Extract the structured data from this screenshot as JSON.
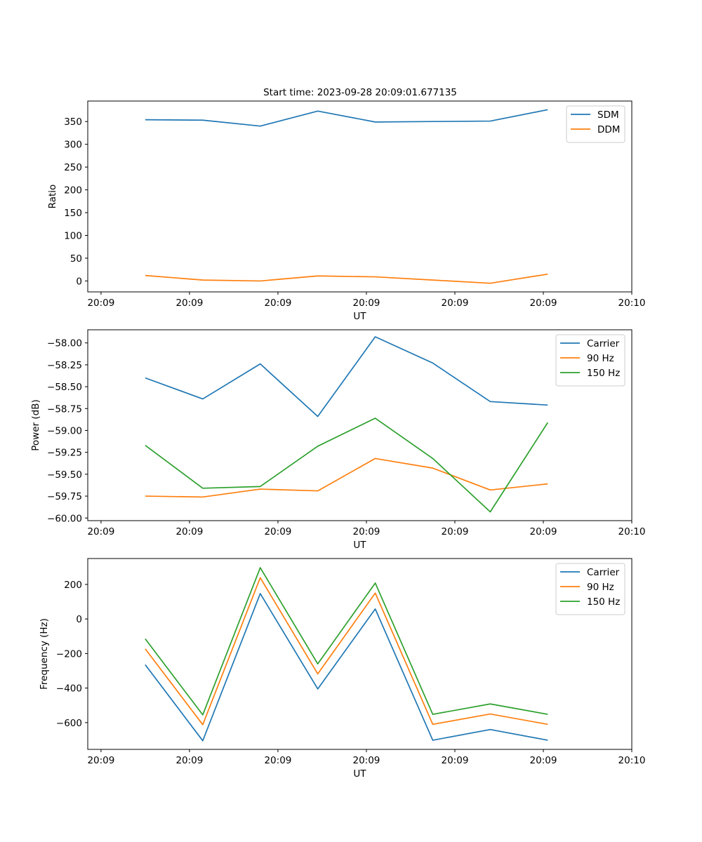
{
  "figure_title": "Start time: 2023-09-28 20:09:01.677135",
  "chart_data": [
    {
      "type": "line",
      "title": "Start time: 2023-09-28 20:09:01.677135",
      "xlabel": "UT",
      "ylabel": "Ratio",
      "x": [
        0.5,
        1.15,
        1.8,
        2.45,
        3.1,
        3.75,
        4.4,
        5.05
      ],
      "xlim": [
        -0.15,
        6.0
      ],
      "xticks": [
        0,
        1,
        2,
        3,
        4,
        5,
        6
      ],
      "xtick_labels": [
        "20:09",
        "20:09",
        "20:09",
        "20:09",
        "20:09",
        "20:09",
        "20:10"
      ],
      "ylim": [
        -24,
        395
      ],
      "yticks": [
        0,
        50,
        100,
        150,
        200,
        250,
        300,
        350
      ],
      "ytick_labels": [
        "0",
        "50",
        "100",
        "150",
        "200",
        "250",
        "300",
        "350"
      ],
      "legend_position": "top-right",
      "series": [
        {
          "name": "SDM",
          "color": "#1f77b4",
          "values": [
            354,
            353,
            340,
            373,
            349,
            350,
            351,
            376
          ]
        },
        {
          "name": "DDM",
          "color": "#ff7f0e",
          "values": [
            12,
            2,
            0,
            11,
            9,
            2,
            -5,
            15
          ]
        }
      ]
    },
    {
      "type": "line",
      "xlabel": "UT",
      "ylabel": "Power (dB)",
      "x": [
        0.5,
        1.15,
        1.8,
        2.45,
        3.1,
        3.75,
        4.4,
        5.05
      ],
      "xlim": [
        -0.15,
        6.0
      ],
      "xticks": [
        0,
        1,
        2,
        3,
        4,
        5,
        6
      ],
      "xtick_labels": [
        "20:09",
        "20:09",
        "20:09",
        "20:09",
        "20:09",
        "20:09",
        "20:10"
      ],
      "ylim": [
        -60.03,
        -57.85
      ],
      "yticks": [
        -60.0,
        -59.75,
        -59.5,
        -59.25,
        -59.0,
        -58.75,
        -58.5,
        -58.25,
        -58.0
      ],
      "ytick_labels": [
        "−60.00",
        "−59.75",
        "−59.50",
        "−59.25",
        "−59.00",
        "−58.75",
        "−58.50",
        "−58.25",
        "−58.00"
      ],
      "legend_position": "top-right",
      "series": [
        {
          "name": "Carrier",
          "color": "#1f77b4",
          "values": [
            -58.4,
            -58.64,
            -58.24,
            -58.84,
            -57.93,
            -58.23,
            -58.67,
            -58.71
          ]
        },
        {
          "name": "90 Hz",
          "color": "#ff7f0e",
          "values": [
            -59.75,
            -59.76,
            -59.67,
            -59.69,
            -59.32,
            -59.43,
            -59.68,
            -59.61
          ]
        },
        {
          "name": "150 Hz",
          "color": "#2ca02c",
          "values": [
            -59.17,
            -59.66,
            -59.64,
            -59.18,
            -58.86,
            -59.32,
            -59.93,
            -58.91
          ]
        }
      ]
    },
    {
      "type": "line",
      "xlabel": "UT",
      "ylabel": "Frequency (Hz)",
      "x": [
        0.5,
        1.15,
        1.8,
        2.45,
        3.1,
        3.75,
        4.4,
        5.05
      ],
      "xlim": [
        -0.15,
        6.0
      ],
      "xticks": [
        0,
        1,
        2,
        3,
        4,
        5,
        6
      ],
      "xtick_labels": [
        "20:09",
        "20:09",
        "20:09",
        "20:09",
        "20:09",
        "20:09",
        "20:10"
      ],
      "ylim": [
        -755,
        350
      ],
      "yticks": [
        -600,
        -400,
        -200,
        0,
        200
      ],
      "ytick_labels": [
        "−600",
        "−400",
        "−200",
        "0",
        "200"
      ],
      "legend_position": "top-right",
      "series": [
        {
          "name": "Carrier",
          "color": "#1f77b4",
          "values": [
            -265,
            -705,
            147,
            -405,
            58,
            -702,
            -640,
            -702
          ]
        },
        {
          "name": "90 Hz",
          "color": "#ff7f0e",
          "values": [
            -173,
            -612,
            239,
            -318,
            150,
            -610,
            -550,
            -610
          ]
        },
        {
          "name": "150 Hz",
          "color": "#2ca02c",
          "values": [
            -115,
            -555,
            297,
            -260,
            208,
            -552,
            -492,
            -552
          ]
        }
      ]
    }
  ]
}
